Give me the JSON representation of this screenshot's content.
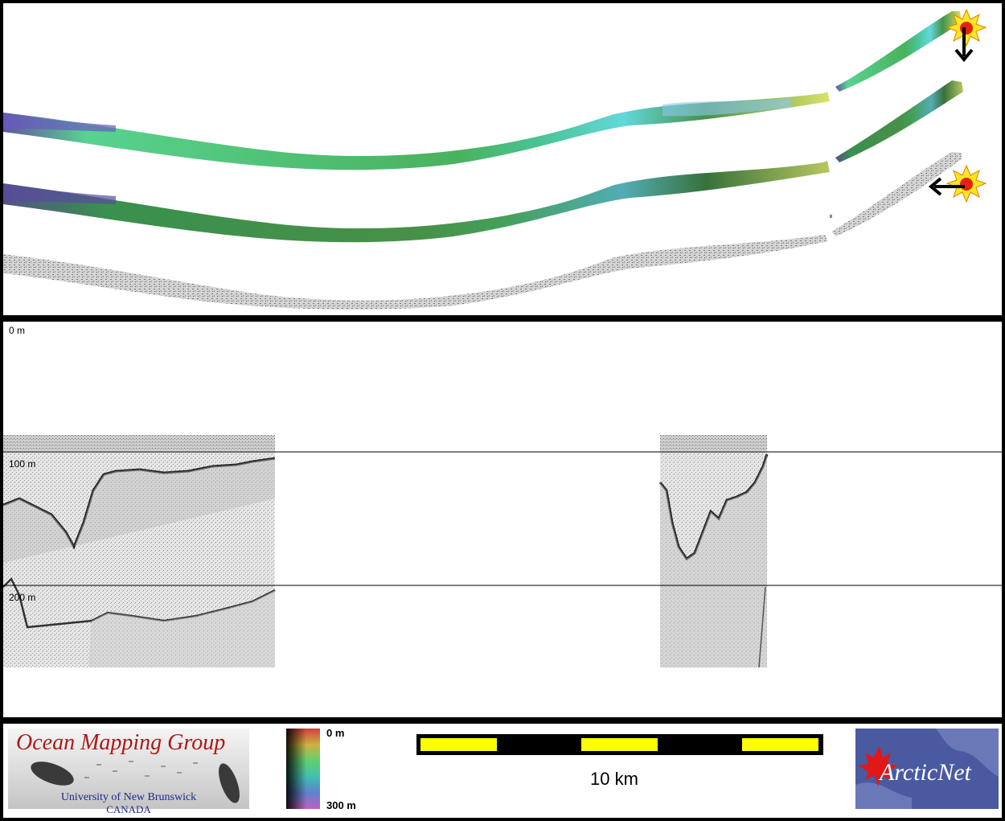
{
  "profile": {
    "depth_labels": [
      "0 m",
      "100 m",
      "200 m"
    ]
  },
  "legend": {
    "logo_title": "Ocean Mapping Group",
    "logo_university": "University of New Brunswick",
    "logo_country": "CANADA",
    "colorbar_top": "0 m",
    "colorbar_bottom": "300 m",
    "scale_label": "10 km",
    "partner_logo": "ArcticNet"
  }
}
